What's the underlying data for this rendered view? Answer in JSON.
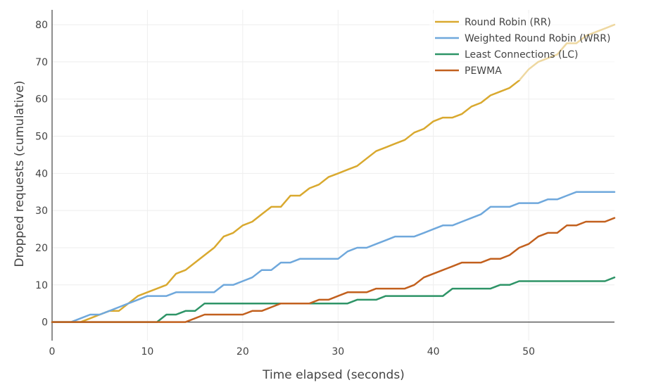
{
  "chart_data": {
    "type": "line",
    "title": "",
    "xlabel": "Time elapsed (seconds)",
    "ylabel": "Dropped requests (cumulative)",
    "xlim": [
      0,
      59
    ],
    "ylim": [
      -5,
      84
    ],
    "x_ticks": [
      0,
      10,
      20,
      30,
      40,
      50
    ],
    "y_ticks": [
      0,
      10,
      20,
      30,
      40,
      50,
      60,
      70,
      80
    ],
    "grid": true,
    "legend_position": "top-right",
    "x": [
      0,
      1,
      2,
      3,
      4,
      5,
      6,
      7,
      8,
      9,
      10,
      11,
      12,
      13,
      14,
      15,
      16,
      17,
      18,
      19,
      20,
      21,
      22,
      23,
      24,
      25,
      26,
      27,
      28,
      29,
      30,
      31,
      32,
      33,
      34,
      35,
      36,
      37,
      38,
      39,
      40,
      41,
      42,
      43,
      44,
      45,
      46,
      47,
      48,
      49,
      50,
      51,
      52,
      53,
      54,
      55,
      56,
      57,
      58,
      59
    ],
    "series": [
      {
        "name": "Round Robin (RR)",
        "color": "#D9A92F",
        "values": [
          0,
          0,
          0,
          0,
          1,
          2,
          3,
          3,
          5,
          7,
          8,
          9,
          10,
          13,
          14,
          16,
          18,
          20,
          23,
          24,
          26,
          27,
          29,
          31,
          31,
          34,
          34,
          36,
          37,
          39,
          40,
          41,
          42,
          44,
          46,
          47,
          48,
          49,
          51,
          52,
          54,
          55,
          55,
          56,
          58,
          59,
          61,
          62,
          63,
          65,
          68,
          70,
          71,
          72,
          75,
          75,
          77,
          78,
          79,
          80
        ]
      },
      {
        "name": "Weighted Round Robin (WRR)",
        "color": "#6FA8DC",
        "values": [
          0,
          0,
          0,
          1,
          2,
          2,
          3,
          4,
          5,
          6,
          7,
          7,
          7,
          8,
          8,
          8,
          8,
          8,
          10,
          10,
          11,
          12,
          14,
          14,
          16,
          16,
          17,
          17,
          17,
          17,
          17,
          19,
          20,
          20,
          21,
          22,
          23,
          23,
          23,
          24,
          25,
          26,
          26,
          27,
          28,
          29,
          31,
          31,
          31,
          32,
          32,
          32,
          33,
          33,
          34,
          35,
          35,
          35,
          35,
          35
        ]
      },
      {
        "name": "Least Connections (LC)",
        "color": "#2E9467",
        "values": [
          0,
          0,
          0,
          0,
          0,
          0,
          0,
          0,
          0,
          0,
          0,
          0,
          2,
          2,
          3,
          3,
          5,
          5,
          5,
          5,
          5,
          5,
          5,
          5,
          5,
          5,
          5,
          5,
          5,
          5,
          5,
          5,
          6,
          6,
          6,
          7,
          7,
          7,
          7,
          7,
          7,
          7,
          9,
          9,
          9,
          9,
          9,
          10,
          10,
          11,
          11,
          11,
          11,
          11,
          11,
          11,
          11,
          11,
          11,
          12
        ]
      },
      {
        "name": "PEWMA",
        "color": "#C2601E",
        "values": [
          0,
          0,
          0,
          0,
          0,
          0,
          0,
          0,
          0,
          0,
          0,
          0,
          0,
          0,
          0,
          1,
          2,
          2,
          2,
          2,
          2,
          3,
          3,
          4,
          5,
          5,
          5,
          5,
          6,
          6,
          7,
          8,
          8,
          8,
          9,
          9,
          9,
          9,
          10,
          12,
          13,
          14,
          15,
          16,
          16,
          16,
          17,
          17,
          18,
          20,
          21,
          23,
          24,
          24,
          26,
          26,
          27,
          27,
          27,
          28
        ]
      }
    ]
  }
}
